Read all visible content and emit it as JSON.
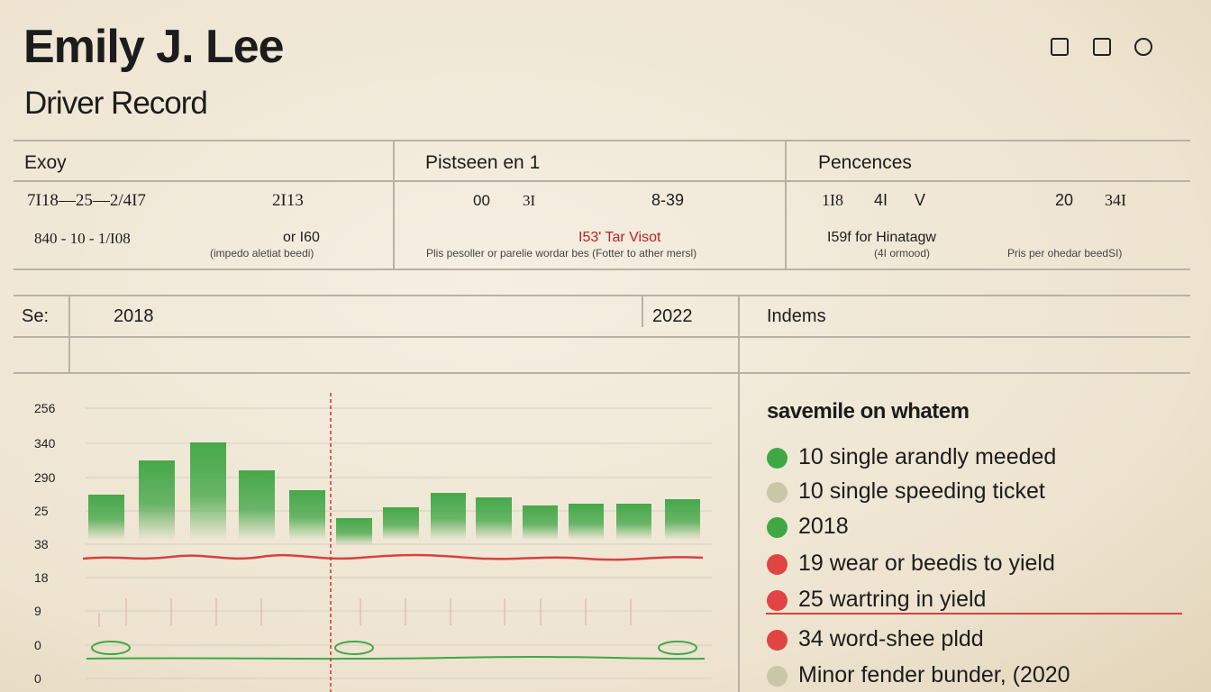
{
  "header": {
    "title": "Emily J. Lee",
    "subtitle": "Driver Record"
  },
  "summary": [
    {
      "heading": "Exoy",
      "lines": [
        "7I18—25—2/4I7",
        "2I13",
        "840 - 10 - 1/I08",
        "or I60",
        "(impedo aletiat beedi)"
      ]
    },
    {
      "heading": "Pistseen en 1",
      "lines": [
        "00",
        "3I",
        "8-39",
        "I53' Tar  Visot",
        "Plis pesoller or parelie wordar bes (Fotter to ather mersl)"
      ]
    },
    {
      "heading": "Pencences",
      "lines": [
        "1I8",
        "4I",
        "V",
        "20",
        "34I",
        "I59f for Hinatagw",
        "(4I ormood)",
        "Pris per ohedar beedSI)"
      ]
    }
  ],
  "section": {
    "label": "Se:",
    "start": "2018",
    "end": "2022",
    "side": "Indems"
  },
  "axis_labels": [
    "256",
    "340",
    "290",
    "25",
    "38",
    "18",
    "9",
    "0",
    "0"
  ],
  "legend": {
    "title": "savemile on whatem",
    "items": [
      {
        "text": "10 single arandly meeded",
        "color": "#3fa845"
      },
      {
        "text": "10 single speeding ticket",
        "color": "#c9c7a8"
      },
      {
        "text": "2018",
        "color": "#3fa845"
      },
      {
        "text": "19  wear or beedis to yield",
        "color": "#e04444"
      },
      {
        "text": "25 wartring in yield",
        "color": "#e04444"
      },
      {
        "text": "34 word-shee pldd",
        "color": "#e04444"
      },
      {
        "text": "Minor fender bunder, (2020",
        "color": "#c9c7a8"
      }
    ]
  }
}
